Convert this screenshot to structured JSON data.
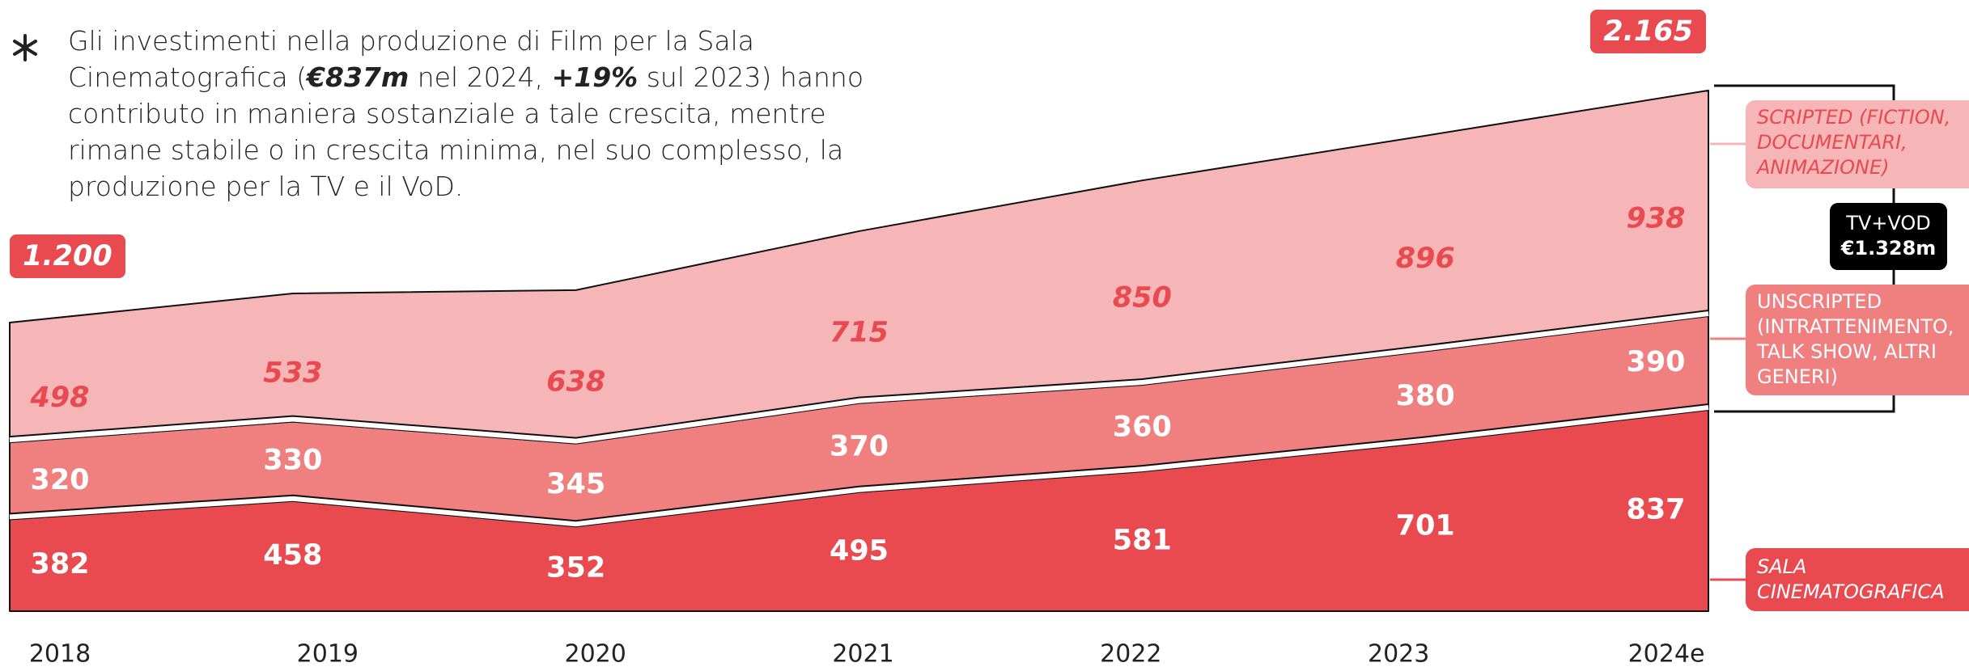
{
  "description": [
    {
      "text": "Gli investimenti nella produzione di Film per la Sala Cinematografica ("
    },
    {
      "text": "€837m",
      "em": true
    },
    {
      "text": " nel 2024, "
    },
    {
      "text": "+19%",
      "em": true
    },
    {
      "text": " sul 2023) hanno contributo in maniera sostanziale a tale crescita, mentre rimane stabile o in crescita minima, nel suo complesso, la produzione per la TV e il VoD."
    }
  ],
  "chart_data": {
    "type": "stacked-area",
    "categories": [
      "2018",
      "2019",
      "2020",
      "2021",
      "2022",
      "2023",
      "2024e"
    ],
    "series": [
      {
        "name": "SALA CINEMATOGRAFICA",
        "color": "#e84a4f",
        "values": [
          382,
          458,
          352,
          495,
          581,
          701,
          837
        ]
      },
      {
        "name": "UNSCRIPTED (INTRATTENIMENTO, TALK SHOW, ALTRI GENERI)",
        "color": "#f08080",
        "values": [
          320,
          330,
          345,
          370,
          360,
          380,
          390
        ]
      },
      {
        "name": "SCRIPTED (FICTION, DOCUMENTARI, ANIMAZIONE)",
        "color": "#f6b6b8",
        "values": [
          498,
          533,
          638,
          715,
          850,
          896,
          938
        ]
      }
    ],
    "ylim": [
      0,
      2200
    ],
    "annotations": {
      "total_start": "1.200",
      "total_end": "2.165",
      "group_label": "TV+VOD",
      "group_value": "€1.328m"
    }
  }
}
